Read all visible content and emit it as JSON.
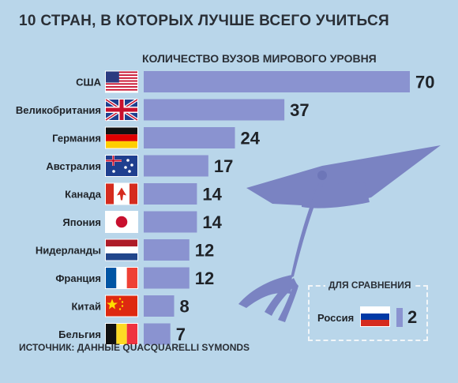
{
  "title": "10 СТРАН, В КОТОРЫХ ЛУЧШЕ ВСЕГО УЧИТЬСЯ",
  "subtitle": "КОЛИЧЕСТВО ВУЗОВ МИРОВОГО УРОВНЯ",
  "source": "ИСТОЧНИК: ДАННЫЕ QUACQUARELLI SYMONDS",
  "comparison": {
    "title": "ДЛЯ СРАВНЕНИЯ",
    "country": "Россия",
    "value": "2",
    "flag": "ru",
    "numeric_value": 2
  },
  "colors": {
    "background": "#b9d6ea",
    "bar": "#8a93d0",
    "text": "#1f2328",
    "cap": "#7a83c2"
  },
  "chart_data": {
    "type": "bar",
    "orientation": "horizontal",
    "categories": [
      "США",
      "Великобритания",
      "Германия",
      "Австралия",
      "Канада",
      "Япония",
      "Нидерланды",
      "Франция",
      "Китай",
      "Бельгия"
    ],
    "values": [
      70,
      37,
      24,
      17,
      14,
      14,
      12,
      12,
      8,
      7
    ],
    "flags": [
      "us",
      "gb",
      "de",
      "au",
      "ca",
      "jp",
      "nl",
      "fr",
      "cn",
      "be"
    ],
    "title": "10 СТРАН, В КОТОРЫХ ЛУЧШЕ ВСЕГО УЧИТЬСЯ",
    "xlabel": "",
    "ylabel": "",
    "xlim": [
      0,
      70
    ],
    "grid": false,
    "legend": "none"
  }
}
